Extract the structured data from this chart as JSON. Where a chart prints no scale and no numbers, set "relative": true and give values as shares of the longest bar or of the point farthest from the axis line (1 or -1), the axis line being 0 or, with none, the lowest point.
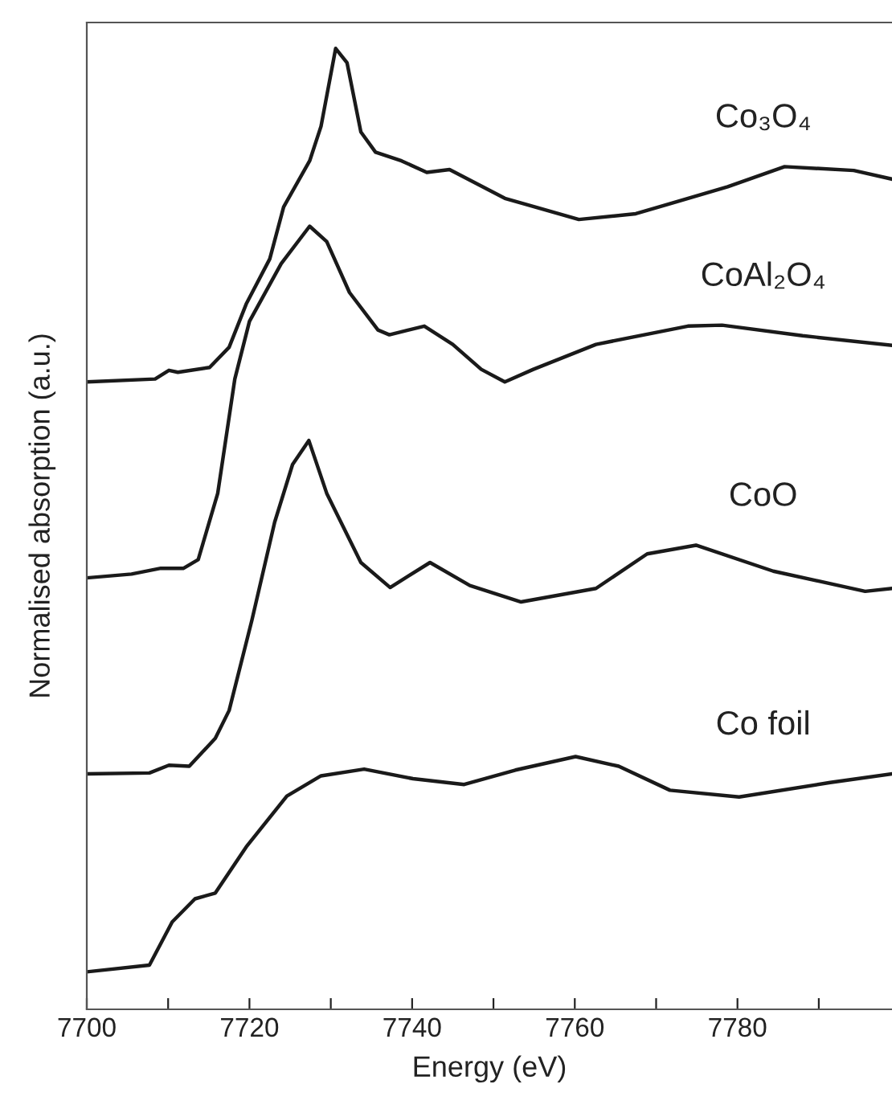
{
  "chart_data": {
    "type": "line",
    "relative": true,
    "xlabel": "Energy (eV)",
    "ylabel": "Normalised absorption (a.u.)",
    "xlim": [
      7700,
      7799
    ],
    "xticks": [
      7700,
      {
        "value": 7710,
        "label": null
      },
      7720,
      {
        "value": 7730,
        "label": null
      },
      7740,
      {
        "value": 7750,
        "label": null
      },
      7760,
      {
        "value": 7770,
        "label": null
      },
      7780,
      {
        "value": 7790,
        "label": null
      }
    ],
    "tick_labels": "x",
    "grid": false,
    "legend": false,
    "marker": "none",
    "line_style": "solid",
    "series": [
      {
        "name": "Co₃O₄",
        "color": "#1a1a1a",
        "x": [
          7700,
          7708.4,
          7710.1,
          7711.2,
          7715.1,
          7717.5,
          7719.6,
          7722.5,
          7724.2,
          7727.4,
          7728.8,
          7730.6,
          7732.0,
          7733.7,
          7735.5,
          7738.7,
          7741.8,
          7744.6,
          7751.4,
          7760.5,
          7767.5,
          7778.8,
          7785.8,
          7794.3,
          7799
        ],
        "values": [
          0.653,
          0.656,
          0.665,
          0.663,
          0.668,
          0.689,
          0.734,
          0.781,
          0.835,
          0.883,
          0.919,
          1.0,
          0.985,
          0.913,
          0.892,
          0.883,
          0.871,
          0.874,
          0.844,
          0.822,
          0.828,
          0.856,
          0.877,
          0.873,
          0.864
        ]
      },
      {
        "name": "CoAl₂O₄",
        "color": "#1a1a1a",
        "x": [
          7700,
          7705.5,
          7709.1,
          7711.9,
          7713.7,
          7716.1,
          7718.2,
          7720.0,
          7723.9,
          7727.4,
          7729.5,
          7732.3,
          7735.8,
          7737.2,
          7741.5,
          7745.0,
          7748.5,
          7751.4,
          7754.9,
          7762.6,
          7773.9,
          7778.1,
          7788.0,
          7799
        ],
        "values": [
          0.449,
          0.453,
          0.459,
          0.459,
          0.468,
          0.537,
          0.656,
          0.716,
          0.776,
          0.815,
          0.799,
          0.746,
          0.707,
          0.702,
          0.711,
          0.692,
          0.666,
          0.653,
          0.666,
          0.692,
          0.711,
          0.712,
          0.701,
          0.691
        ]
      },
      {
        "name": "CoO",
        "color": "#1a1a1a",
        "x": [
          7700,
          7707.7,
          7710.1,
          7712.6,
          7715.8,
          7717.5,
          7720.3,
          7723.1,
          7725.3,
          7727.3,
          7729.5,
          7733.7,
          7737.3,
          7742.2,
          7747.1,
          7753.4,
          7762.6,
          7768.9,
          7774.9,
          7784.4,
          7795.7,
          7799
        ],
        "values": [
          0.245,
          0.246,
          0.254,
          0.253,
          0.282,
          0.311,
          0.405,
          0.507,
          0.567,
          0.592,
          0.537,
          0.465,
          0.439,
          0.465,
          0.441,
          0.424,
          0.438,
          0.474,
          0.483,
          0.456,
          0.435,
          0.438
        ]
      },
      {
        "name": "Co foil",
        "color": "#1a1a1a",
        "x": [
          7700,
          7707.7,
          7710.5,
          7713.3,
          7715.8,
          7719.6,
          7724.6,
          7728.8,
          7734.1,
          7740.1,
          7746.4,
          7752.7,
          7760.1,
          7765.4,
          7771.7,
          7780.2,
          7791.4,
          7799
        ],
        "values": [
          0.039,
          0.046,
          0.091,
          0.115,
          0.121,
          0.169,
          0.222,
          0.243,
          0.25,
          0.24,
          0.234,
          0.249,
          0.263,
          0.253,
          0.228,
          0.221,
          0.236,
          0.245
        ]
      }
    ]
  }
}
